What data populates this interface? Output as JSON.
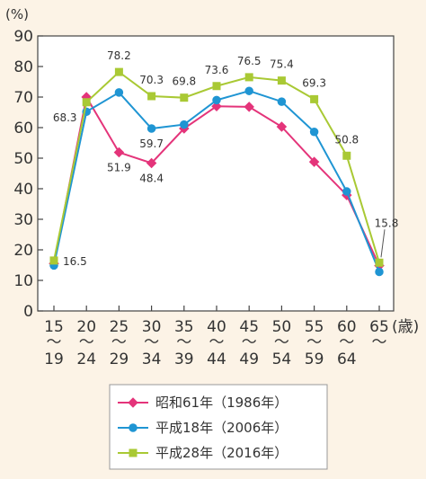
{
  "chart_data": {
    "type": "line",
    "y_unit_label": "(%)",
    "x_unit_label": "(歳)",
    "ylim": [
      0,
      90
    ],
    "yticks": [
      0,
      10,
      20,
      30,
      40,
      50,
      60,
      70,
      80,
      90
    ],
    "grid": false,
    "legend_position": "bottom-center",
    "categories": [
      {
        "start": "15",
        "end": "19"
      },
      {
        "start": "20",
        "end": "24"
      },
      {
        "start": "25",
        "end": "29"
      },
      {
        "start": "30",
        "end": "34"
      },
      {
        "start": "35",
        "end": "39"
      },
      {
        "start": "40",
        "end": "44"
      },
      {
        "start": "45",
        "end": "49"
      },
      {
        "start": "50",
        "end": "54"
      },
      {
        "start": "55",
        "end": "59"
      },
      {
        "start": "60",
        "end": "64"
      },
      {
        "start": "65",
        "end": ""
      }
    ],
    "range_mark": "～",
    "series": [
      {
        "name": "昭和61年（1986年）",
        "color": "#e4347a",
        "marker": "diamond",
        "values": [
          15.5,
          70.0,
          51.9,
          48.4,
          59.7,
          67.0,
          66.8,
          60.3,
          48.8,
          37.9,
          14.8
        ],
        "labels": [
          null,
          null,
          "51.9",
          "48.4",
          null,
          null,
          null,
          null,
          null,
          null,
          null
        ]
      },
      {
        "name": "平成18年（2006年）",
        "color": "#1f95d3",
        "marker": "circle",
        "values": [
          14.9,
          65.2,
          71.5,
          59.7,
          61.0,
          69.0,
          72.0,
          68.5,
          58.6,
          39.1,
          12.8
        ],
        "labels": [
          null,
          null,
          null,
          "59.7",
          null,
          null,
          null,
          null,
          null,
          null,
          null
        ]
      },
      {
        "name": "平成28年（2016年）",
        "color": "#a9c934",
        "marker": "square",
        "values": [
          16.5,
          68.3,
          78.2,
          70.3,
          69.8,
          73.6,
          76.5,
          75.4,
          69.3,
          50.8,
          15.8
        ],
        "labels": [
          "16.5",
          "68.3",
          "78.2",
          "70.3",
          "69.8",
          "73.6",
          "76.5",
          "75.4",
          "69.3",
          "50.8",
          "15.8"
        ]
      }
    ]
  }
}
